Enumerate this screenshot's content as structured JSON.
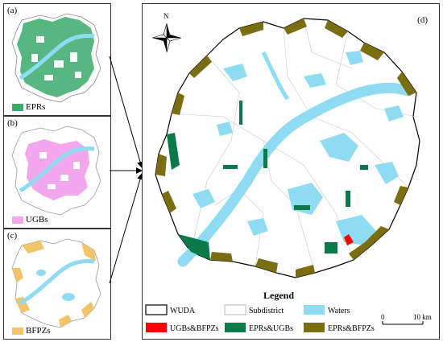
{
  "panels": {
    "a": {
      "label": "(a)",
      "legend": "EPRs"
    },
    "b": {
      "label": "(b)",
      "legend": "UGBs"
    },
    "c": {
      "label": "(c)",
      "legend": "BFPZs"
    },
    "d": {
      "label": "(d)"
    }
  },
  "compass": {
    "north_label": "N"
  },
  "legend": {
    "title": "Legend",
    "items": [
      {
        "label": "WUDA",
        "color": "#ffffff"
      },
      {
        "label": "Subdistrict",
        "color": "#ffffff"
      },
      {
        "label": "Waters",
        "color": "#8fdcf2"
      },
      {
        "label": "UGBs&BFPZs",
        "color": "#ff0000"
      },
      {
        "label": "EPRs&UGBs",
        "color": "#0a7a4a"
      },
      {
        "label": "EPRs&BFPZs",
        "color": "#7a6d12"
      }
    ]
  },
  "scale_bar": {
    "start": "0",
    "end": "10 km"
  },
  "colors": {
    "epr": "#3aaa6a",
    "ugb": "#f2a6ec",
    "bfpz": "#f2c46a",
    "water": "#8fdcf2",
    "overlap_epr_ugb": "#0a7a4a",
    "overlap_epr_bfpz": "#7a6d12",
    "overlap_ugb_bfpz": "#ff0000"
  }
}
